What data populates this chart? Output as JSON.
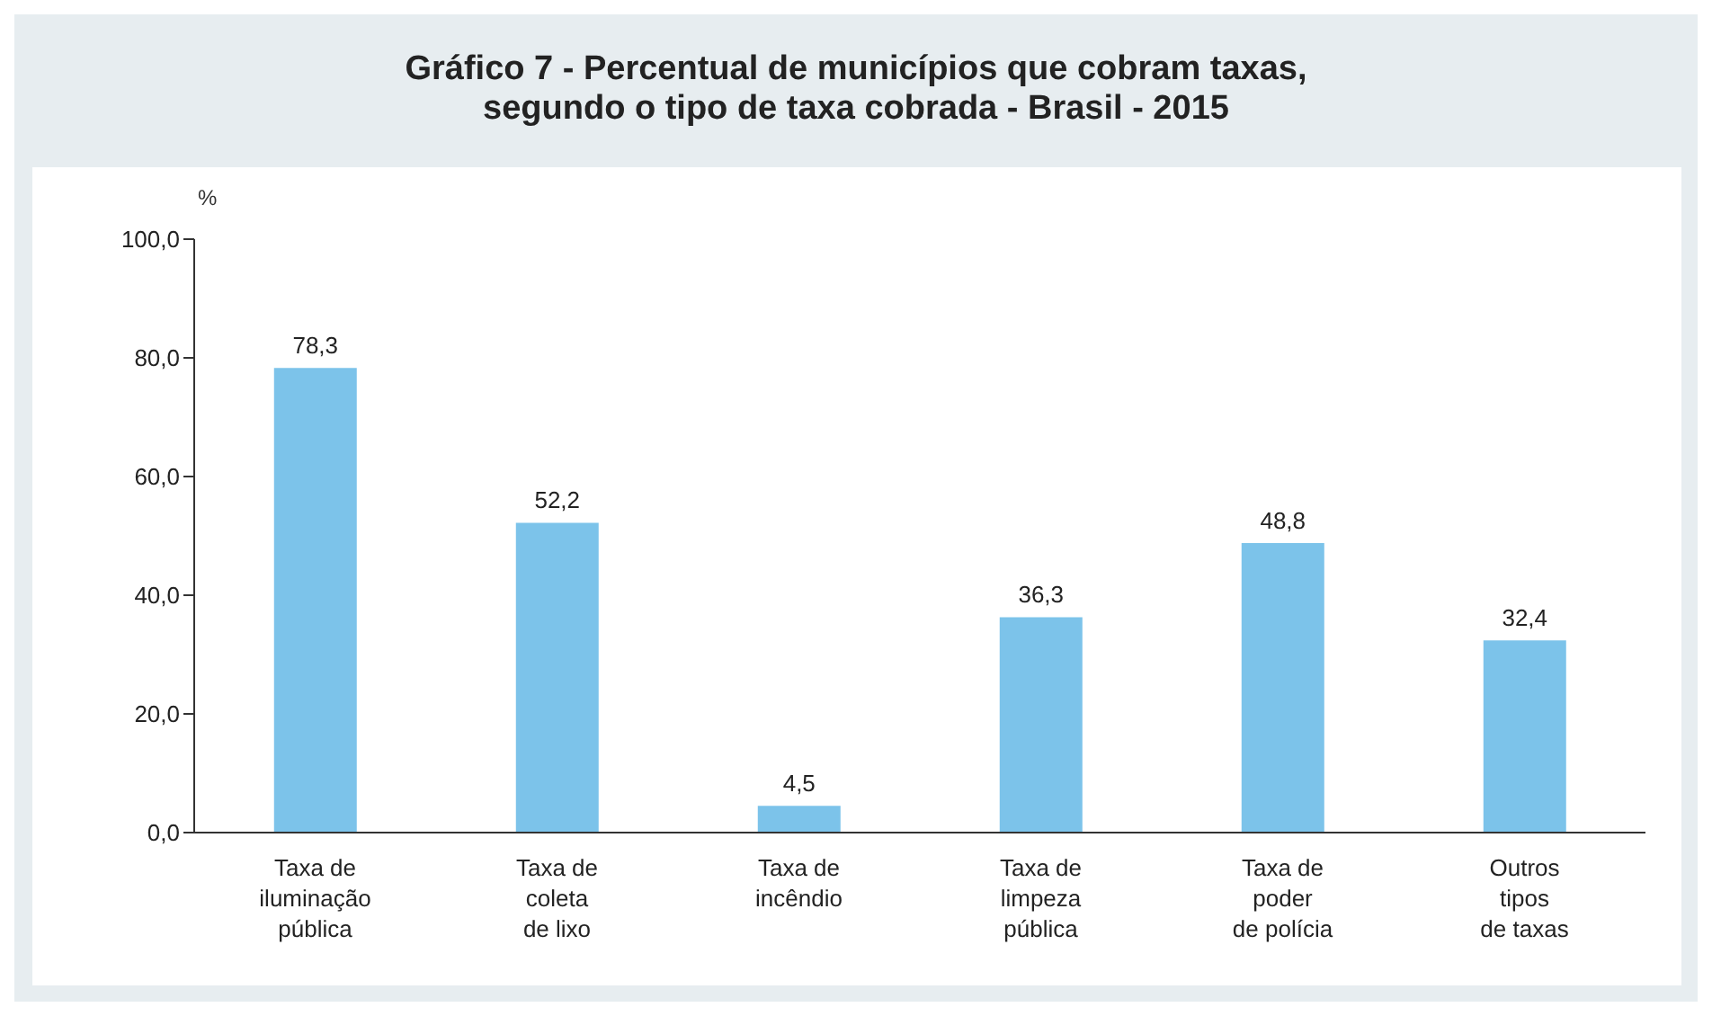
{
  "chart_data": {
    "type": "bar",
    "title": "Gráfico 7 - Percentual de municípios que cobram taxas,\nsegundo o tipo de taxa cobrada - Brasil - 2015",
    "ylabel": "%",
    "categories": [
      "Taxa de\niluminação\npública",
      "Taxa de\ncoleta\nde lixo",
      "Taxa de\nincêndio",
      "Taxa de\nlimpeza\npública",
      "Taxa de\npoder\nde polícia",
      "Outros\ntipos\nde taxas"
    ],
    "values": [
      78.3,
      52.2,
      4.5,
      36.3,
      48.8,
      32.4
    ],
    "value_labels": [
      "78,3",
      "52,2",
      "4,5",
      "36,3",
      "48,8",
      "32,4"
    ],
    "color": "#7cc3ea",
    "ylim": [
      0,
      100
    ],
    "yticks": [
      {
        "value": 0,
        "label": "0,0"
      },
      {
        "value": 20,
        "label": "20,0"
      },
      {
        "value": 40,
        "label": "40,0"
      },
      {
        "value": 60,
        "label": "60,0"
      },
      {
        "value": 80,
        "label": "80,0"
      },
      {
        "value": 100,
        "label": "100,0"
      }
    ],
    "grid": false,
    "legend": false
  }
}
